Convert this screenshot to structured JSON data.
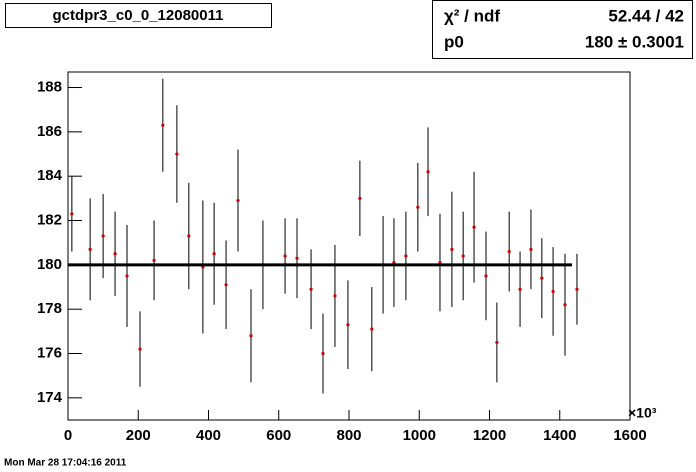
{
  "chart_data": {
    "type": "errorbar",
    "title": "gctdpr3_c0_0_12080011",
    "footer": "Mon Mar 28 17:04:16 2011",
    "x_exponent_label": "×10³",
    "stats": {
      "chi2_label": "χ² / ndf",
      "chi2_value": "52.44 / 42",
      "p0_label": "p0",
      "p0_value_label": "180 ± 0.3001"
    },
    "fit": {
      "p0": 180,
      "xrange": [
        0,
        1435
      ],
      "color": "#000000"
    },
    "xlim": [
      0,
      1600
    ],
    "xticks": [
      0,
      200,
      400,
      600,
      800,
      1000,
      1200,
      1400,
      1600
    ],
    "ylim": [
      173,
      188.7
    ],
    "yticks": [
      174,
      176,
      178,
      180,
      182,
      184,
      186,
      188
    ],
    "series": [
      {
        "color": "#cc0000",
        "x": [
          11,
          63,
          100,
          134,
          168,
          205,
          245,
          270,
          310,
          344,
          384,
          416,
          450,
          484,
          521,
          555,
          618,
          652,
          692,
          726,
          760,
          797,
          831,
          865,
          897,
          928,
          962,
          996,
          1025,
          1059,
          1093,
          1125,
          1156,
          1190,
          1221,
          1256,
          1287,
          1318,
          1349,
          1381,
          1415,
          1449
        ],
        "values": [
          182.3,
          180.7,
          181.3,
          180.5,
          179.5,
          176.2,
          180.2,
          186.3,
          185,
          181.3,
          179.9,
          180.5,
          179.1,
          182.9,
          176.8,
          180,
          180.4,
          180.3,
          178.9,
          176,
          178.6,
          177.3,
          183,
          177.1,
          180,
          180.1,
          180.4,
          182.6,
          184.2,
          180.1,
          180.7,
          180.4,
          181.7,
          179.5,
          176.5,
          180.6,
          178.9,
          180.7,
          179.4,
          178.8,
          178.2,
          178.9
        ],
        "errors": [
          1.7,
          2.3,
          1.9,
          1.9,
          2.3,
          1.7,
          1.8,
          2.1,
          2.2,
          2.4,
          3,
          2.3,
          2,
          2.3,
          2.1,
          2,
          1.7,
          1.8,
          1.8,
          1.8,
          2.3,
          2,
          1.7,
          1.9,
          2.2,
          2,
          2,
          2,
          2,
          2.2,
          2.6,
          2,
          2.5,
          2,
          1.8,
          1.8,
          1.7,
          1.8,
          1.8,
          2,
          2.3,
          1.6
        ]
      }
    ]
  }
}
